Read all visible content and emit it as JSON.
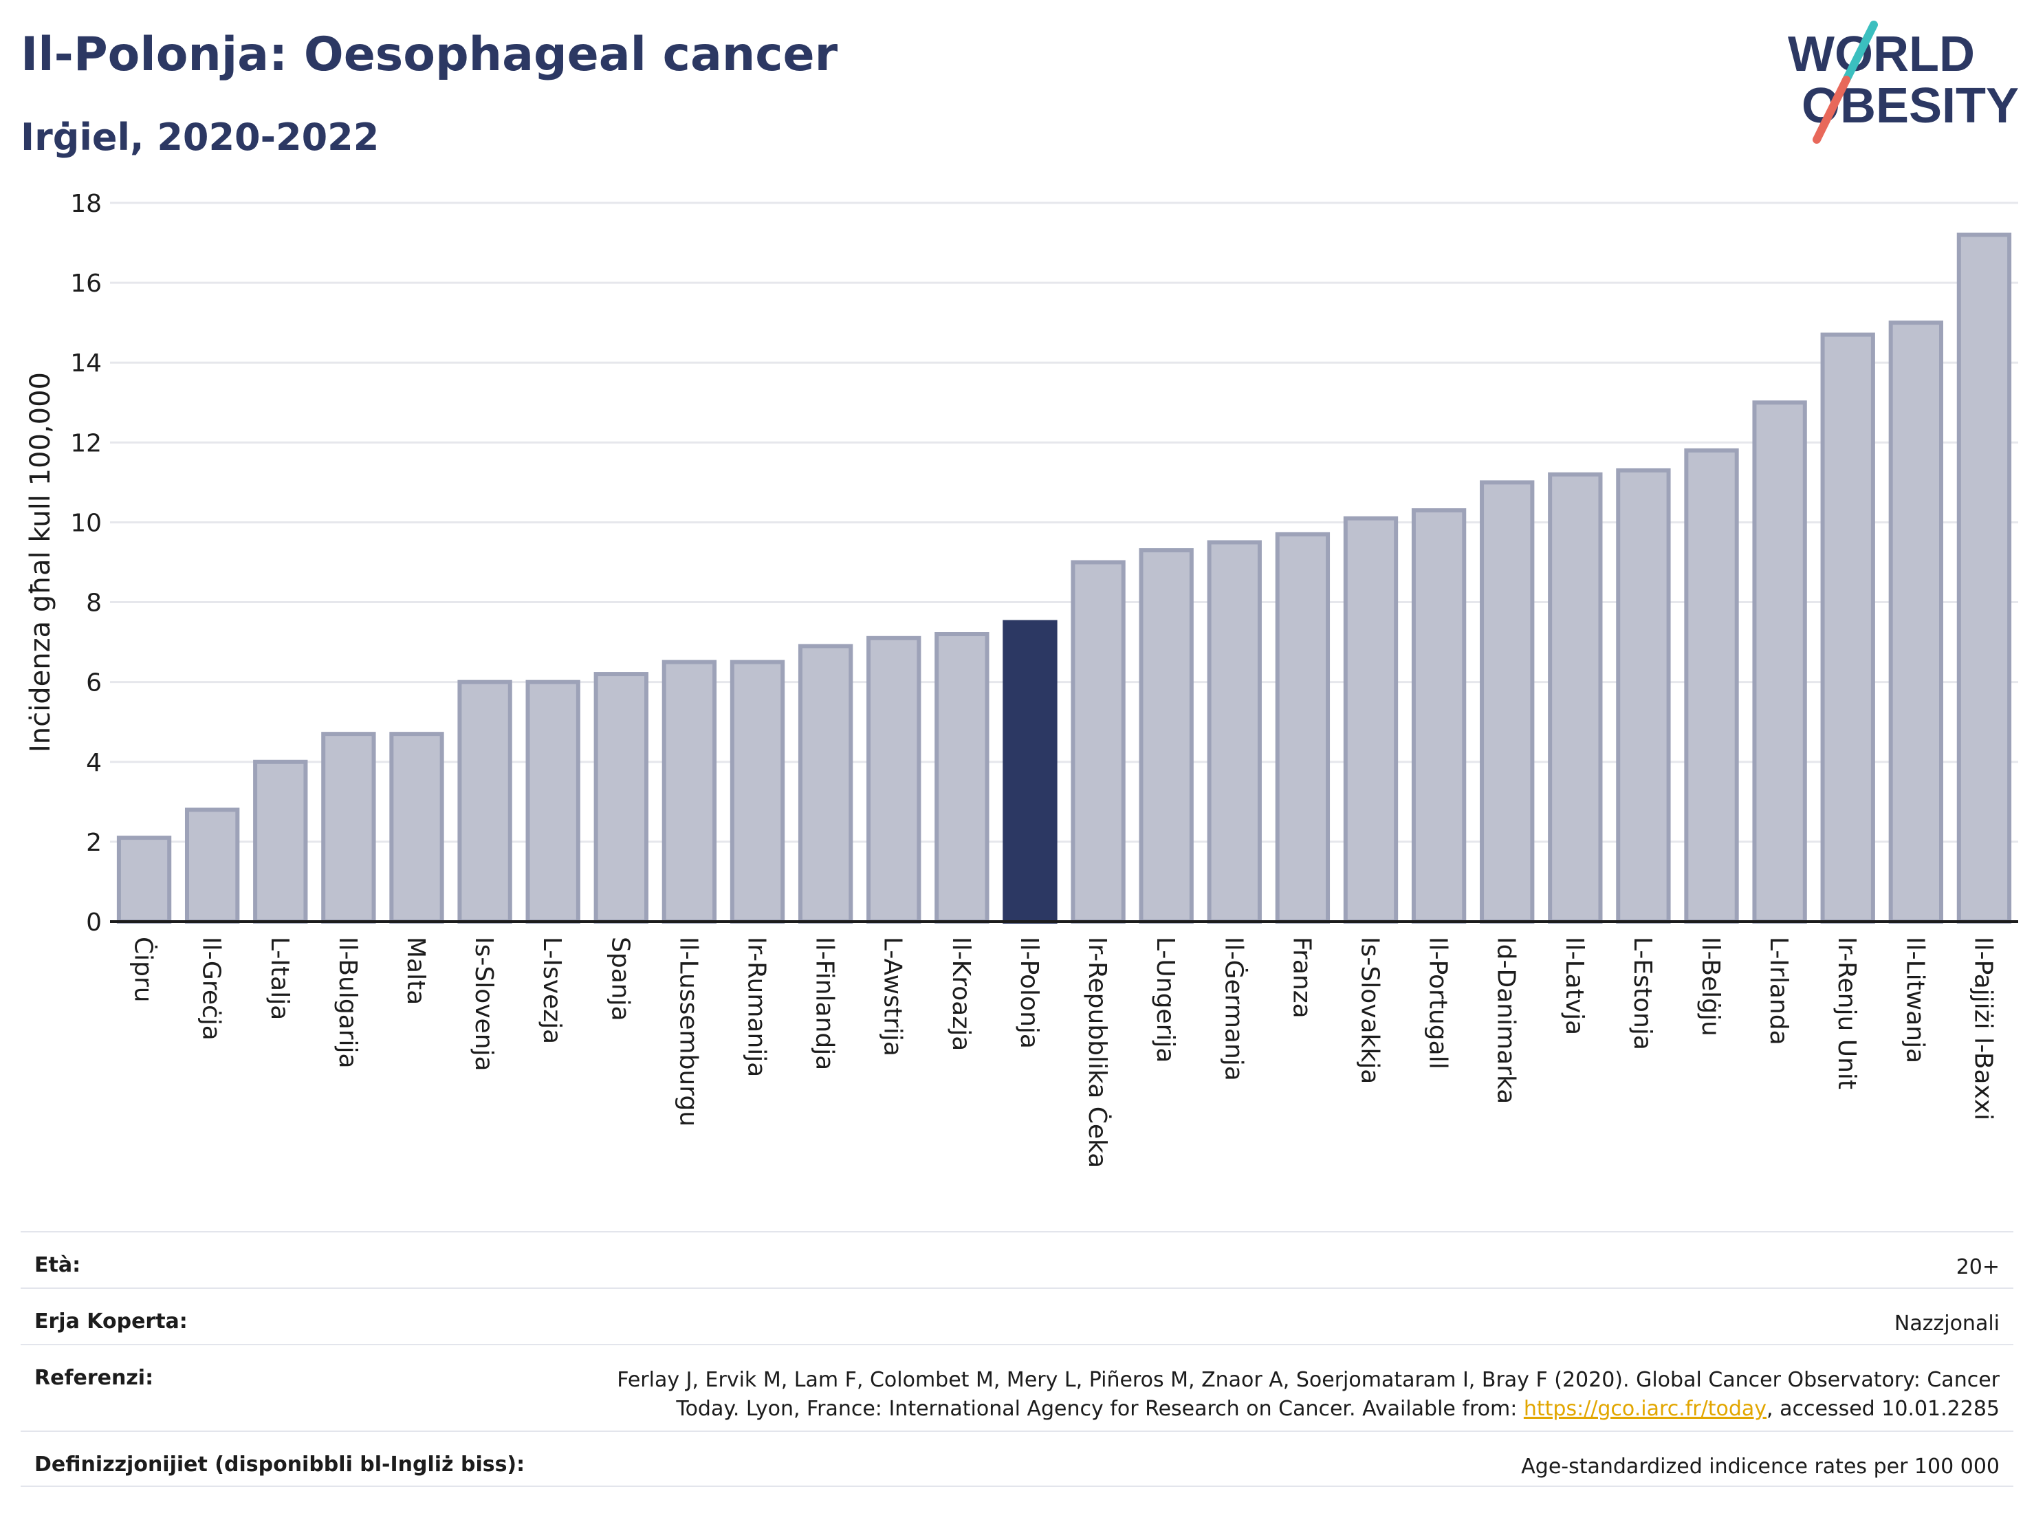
{
  "header": {
    "title": "Il-Polonja: Oesophageal cancer",
    "subtitle": "Irġiel, 2020-2022"
  },
  "logo": {
    "line1": "WORLD",
    "line2": "OBESITY",
    "slash_colors": [
      "#3bbfbf",
      "#e8685a"
    ],
    "text_color": "#2c3863"
  },
  "colors": {
    "bar_default": "#bec1cf",
    "bar_border": "#9da2b8",
    "bar_highlight": "#2c3863",
    "axis": "#1c1c1c",
    "grid": "#e6e7ec"
  },
  "chart_data": {
    "type": "bar",
    "ylabel": "Inċidenza għal kull 100,000",
    "ylim": [
      0,
      18
    ],
    "yticks": [
      0,
      2,
      4,
      6,
      8,
      10,
      12,
      14,
      16,
      18
    ],
    "grid": true,
    "highlight": "Il-Polonja",
    "categories": [
      "Ċipru",
      "Il-Greċja",
      "L-Italja",
      "Il-Bulgarija",
      "Malta",
      "Is-Slovenja",
      "L-Isvezja",
      "Spanja",
      "Il-Lussemburgu",
      "Ir-Rumanija",
      "Il-Finlandja",
      "L-Awstrija",
      "Il-Kroazja",
      "Il-Polonja",
      "Ir-Repubblika Ċeka",
      "L-Ungerija",
      "Il-Ġermanja",
      "Franza",
      "Is-Slovakkja",
      "Il-Portugall",
      "Id-Danimarka",
      "Il-Latvja",
      "L-Estonja",
      "Il-Belġju",
      "L-Irlanda",
      "Ir-Renju Unit",
      "Il-Litwanja",
      "Il-Pajjiżi l-Baxxi"
    ],
    "values": [
      2.1,
      2.8,
      4.0,
      4.7,
      4.7,
      6.0,
      6.0,
      6.2,
      6.5,
      6.5,
      6.9,
      7.1,
      7.2,
      7.5,
      9.0,
      9.3,
      9.5,
      9.7,
      10.1,
      10.3,
      11.0,
      11.2,
      11.3,
      11.8,
      13.0,
      14.7,
      15.0,
      17.2
    ]
  },
  "info": {
    "age_label": "Età:",
    "age_value": "20+",
    "area_label": "Erja Koperta:",
    "area_value": "Nazzjonali",
    "ref_label": "Referenzi:",
    "ref_line1": "Ferlay J, Ervik M, Lam F, Colombet M, Mery L, Piñeros M, Znaor A, Soerjomataram I, Bray F (2020). Global Cancer Observatory: Cancer",
    "ref_line2_pre": "Today. Lyon, France: International Agency for Research on Cancer. Available from: ",
    "ref_link": "https://gco.iarc.fr/today",
    "ref_line2_post": ", accessed 10.01.2285",
    "def_label": "Definizzjonijiet (disponibbli bl-Ingliż biss):",
    "def_value": "Age-standardized indicence rates per 100 000"
  }
}
